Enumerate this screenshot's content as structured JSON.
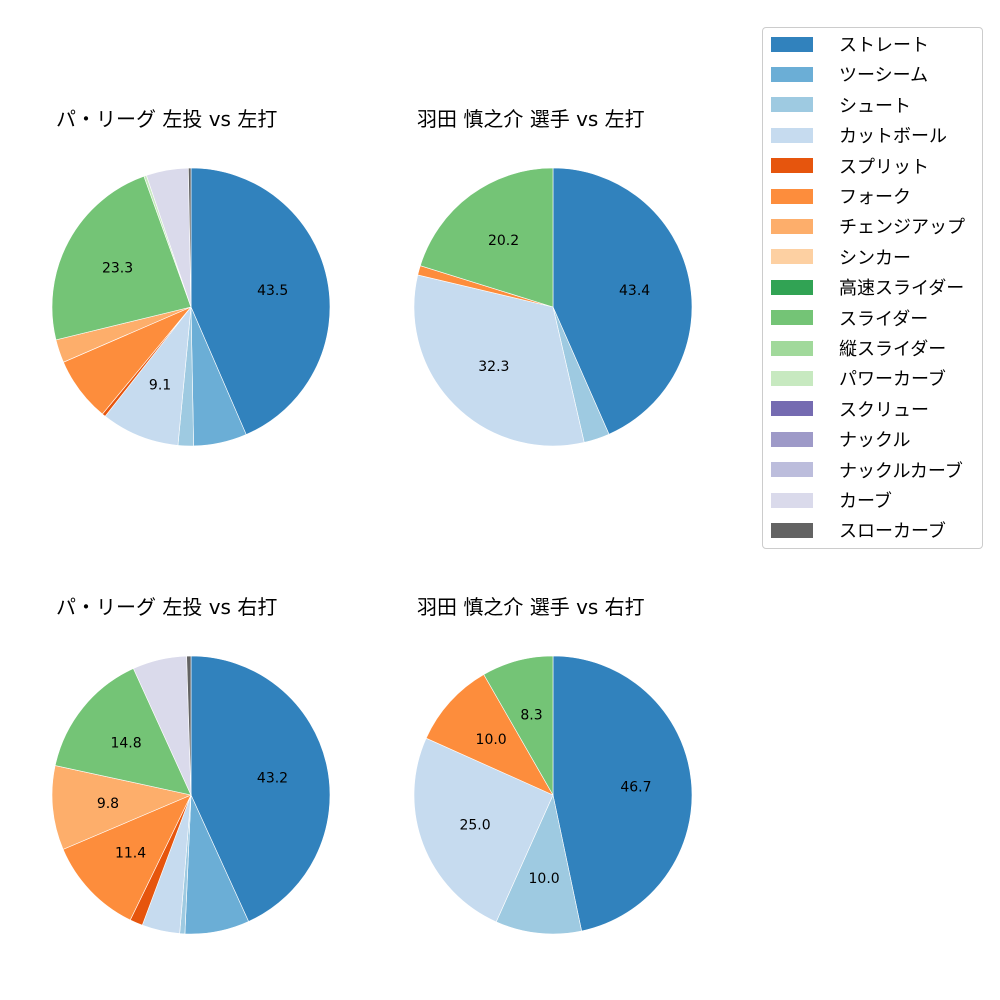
{
  "legend": {
    "items": [
      {
        "label": "ストレート",
        "color": "#3182bd"
      },
      {
        "label": "ツーシーム",
        "color": "#6baed6"
      },
      {
        "label": "シュート",
        "color": "#9ecae1"
      },
      {
        "label": "カットボール",
        "color": "#c6dbef"
      },
      {
        "label": "スプリット",
        "color": "#e6550d"
      },
      {
        "label": "フォーク",
        "color": "#fd8d3c"
      },
      {
        "label": "チェンジアップ",
        "color": "#fdae6b"
      },
      {
        "label": "シンカー",
        "color": "#fdd0a2"
      },
      {
        "label": "高速スライダー",
        "color": "#31a354"
      },
      {
        "label": "スライダー",
        "color": "#74c476"
      },
      {
        "label": "縦スライダー",
        "color": "#a1d99b"
      },
      {
        "label": "パワーカーブ",
        "color": "#c7e9c0"
      },
      {
        "label": "スクリュー",
        "color": "#756bb1"
      },
      {
        "label": "ナックル",
        "color": "#9e9ac8"
      },
      {
        "label": "ナックルカーブ",
        "color": "#bcbddc"
      },
      {
        "label": "カーブ",
        "color": "#dadaeb"
      },
      {
        "label": "スローカーブ",
        "color": "#636363"
      }
    ]
  },
  "chart_data": [
    {
      "type": "pie",
      "title": "パ・リーグ 左投 vs 左打",
      "categories": [
        "ストレート",
        "ツーシーム",
        "シュート",
        "カットボール",
        "スプリット",
        "フォーク",
        "チェンジアップ",
        "スライダー",
        "パワーカーブ",
        "カーブ",
        "スローカーブ"
      ],
      "values": [
        43.5,
        6.2,
        1.8,
        9.1,
        0.4,
        7.5,
        2.7,
        23.3,
        0.3,
        4.9,
        0.3
      ],
      "labels_shown": [
        "43.5",
        "",
        "",
        "9.1",
        "",
        "",
        "",
        "23.3",
        "",
        "",
        ""
      ],
      "startangle": 90,
      "direction": "clockwise"
    },
    {
      "type": "pie",
      "title": "羽田 慎之介 選手 vs 左打",
      "categories": [
        "ストレート",
        "シュート",
        "カットボール",
        "フォーク",
        "スライダー"
      ],
      "values": [
        43.4,
        3.0,
        32.3,
        1.1,
        20.2
      ],
      "labels_shown": [
        "43.4",
        "",
        "32.3",
        "",
        "20.2"
      ],
      "startangle": 90,
      "direction": "clockwise"
    },
    {
      "type": "pie",
      "title": "パ・リーグ 左投 vs 右打",
      "categories": [
        "ストレート",
        "ツーシーム",
        "シュート",
        "カットボール",
        "スプリット",
        "フォーク",
        "チェンジアップ",
        "スライダー",
        "カーブ",
        "スローカーブ"
      ],
      "values": [
        43.2,
        7.5,
        0.6,
        4.4,
        1.5,
        11.4,
        9.8,
        14.8,
        6.3,
        0.5
      ],
      "labels_shown": [
        "43.2",
        "",
        "",
        "",
        "",
        "11.4",
        "9.8",
        "14.8",
        "",
        ""
      ],
      "startangle": 90,
      "direction": "clockwise"
    },
    {
      "type": "pie",
      "title": "羽田 慎之介 選手 vs 右打",
      "categories": [
        "ストレート",
        "シュート",
        "カットボール",
        "フォーク",
        "スライダー"
      ],
      "values": [
        46.7,
        10.0,
        25.0,
        10.0,
        8.3
      ],
      "labels_shown": [
        "46.7",
        "10.0",
        "25.0",
        "10.0",
        "8.3"
      ],
      "startangle": 90,
      "direction": "clockwise"
    }
  ]
}
